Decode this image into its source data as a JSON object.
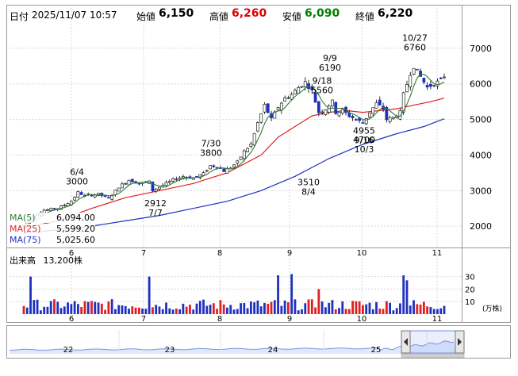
{
  "header": {
    "date_label": "日付",
    "date_value": "2025/11/07 10:57",
    "open_label": "始値",
    "open_value": "6,150",
    "high_label": "高値",
    "high_value": "6,260",
    "low_label": "安値",
    "low_value": "6,090",
    "close_label": "終値",
    "close_value": "6,220"
  },
  "ma_legend": [
    {
      "label": "MA(5)",
      "value": "6,094.00",
      "color": "#2e7d32"
    },
    {
      "label": "MA(25)",
      "value": "5,599.20",
      "color": "#e02020"
    },
    {
      "label": "MA(75)",
      "value": "5,025.60",
      "color": "#2030c0"
    }
  ],
  "volume_header": {
    "label": "出来高",
    "value": "13,200株"
  },
  "volume_unit": "(万株)",
  "colors": {
    "up": "#2030c0",
    "down": "#e02020",
    "ma5": "#2e7d32",
    "ma25": "#e02020",
    "ma75": "#2030c0"
  },
  "chart_data": {
    "type": "candlestick",
    "price_axis": {
      "min": 1400,
      "max": 7600,
      "ticks": [
        2000,
        3000,
        4000,
        5000,
        6000,
        7000
      ]
    },
    "month_ticks": [
      "6",
      "7",
      "8",
      "9",
      "10",
      "11"
    ],
    "volume_axis": {
      "max": 38,
      "ticks": [
        10,
        20,
        30
      ]
    },
    "navigator_ticks": [
      "22",
      "23",
      "24",
      "25"
    ],
    "annotations": [
      {
        "label": "6/4",
        "value": "3000",
        "pos": "above"
      },
      {
        "label": "7/7",
        "value": "2912",
        "pos": "below"
      },
      {
        "label": "7/30",
        "value": "3800",
        "pos": "above"
      },
      {
        "label": "8/4",
        "value": "3510",
        "pos": "below"
      },
      {
        "label": "9/9",
        "value": "6190",
        "pos": "above"
      },
      {
        "label": "9/18",
        "value": "5560",
        "pos": "above"
      },
      {
        "label": "9/16",
        "value": "4955",
        "pos": "below"
      },
      {
        "label": "10/3",
        "value": "4700",
        "pos": "below"
      },
      {
        "label": "10/27",
        "value": "6760",
        "pos": "above"
      }
    ],
    "close_path": [
      [
        0,
        2000
      ],
      [
        3,
        2300
      ],
      [
        6,
        2450
      ],
      [
        10,
        2500
      ],
      [
        14,
        2700
      ],
      [
        16,
        2950
      ],
      [
        18,
        2850
      ],
      [
        22,
        2900
      ],
      [
        25,
        2780
      ],
      [
        28,
        3100
      ],
      [
        31,
        3300
      ],
      [
        34,
        3200
      ],
      [
        37,
        3250
      ],
      [
        38,
        3000
      ],
      [
        41,
        3150
      ],
      [
        44,
        3300
      ],
      [
        47,
        3400
      ],
      [
        50,
        3350
      ],
      [
        53,
        3480
      ],
      [
        55,
        3700
      ],
      [
        57,
        3680
      ],
      [
        59,
        3550
      ],
      [
        61,
        3650
      ],
      [
        63,
        3800
      ],
      [
        65,
        4100
      ],
      [
        67,
        4300
      ],
      [
        69,
        4900
      ],
      [
        71,
        5400
      ],
      [
        73,
        5000
      ],
      [
        75,
        5350
      ],
      [
        77,
        5600
      ],
      [
        79,
        5700
      ],
      [
        81,
        5900
      ],
      [
        83,
        6050
      ],
      [
        85,
        5800
      ],
      [
        87,
        5200
      ],
      [
        89,
        5300
      ],
      [
        91,
        5500
      ],
      [
        92,
        5200
      ],
      [
        94,
        5250
      ],
      [
        96,
        5100
      ],
      [
        98,
        5000
      ],
      [
        100,
        4900
      ],
      [
        102,
        5200
      ],
      [
        104,
        5450
      ],
      [
        106,
        5300
      ],
      [
        107,
        5000
      ],
      [
        109,
        5050
      ],
      [
        111,
        5200
      ],
      [
        112,
        5700
      ],
      [
        114,
        6300
      ],
      [
        115,
        6500
      ],
      [
        117,
        6200
      ],
      [
        119,
        5900
      ],
      [
        121,
        6000
      ],
      [
        123,
        6100
      ],
      [
        124,
        6220
      ]
    ],
    "ma25_path": [
      [
        0,
        1950
      ],
      [
        10,
        2150
      ],
      [
        20,
        2500
      ],
      [
        30,
        2800
      ],
      [
        40,
        3000
      ],
      [
        50,
        3200
      ],
      [
        60,
        3500
      ],
      [
        70,
        4000
      ],
      [
        75,
        4500
      ],
      [
        80,
        4800
      ],
      [
        85,
        5100
      ],
      [
        90,
        5200
      ],
      [
        95,
        5250
      ],
      [
        100,
        5200
      ],
      [
        105,
        5250
      ],
      [
        110,
        5300
      ],
      [
        115,
        5400
      ],
      [
        120,
        5500
      ],
      [
        124,
        5600
      ]
    ],
    "ma75_path": [
      [
        0,
        1800
      ],
      [
        10,
        1900
      ],
      [
        20,
        2000
      ],
      [
        30,
        2150
      ],
      [
        40,
        2300
      ],
      [
        50,
        2500
      ],
      [
        60,
        2700
      ],
      [
        70,
        3000
      ],
      [
        80,
        3400
      ],
      [
        90,
        3900
      ],
      [
        100,
        4300
      ],
      [
        110,
        4600
      ],
      [
        118,
        4800
      ],
      [
        124,
        5020
      ]
    ]
  }
}
